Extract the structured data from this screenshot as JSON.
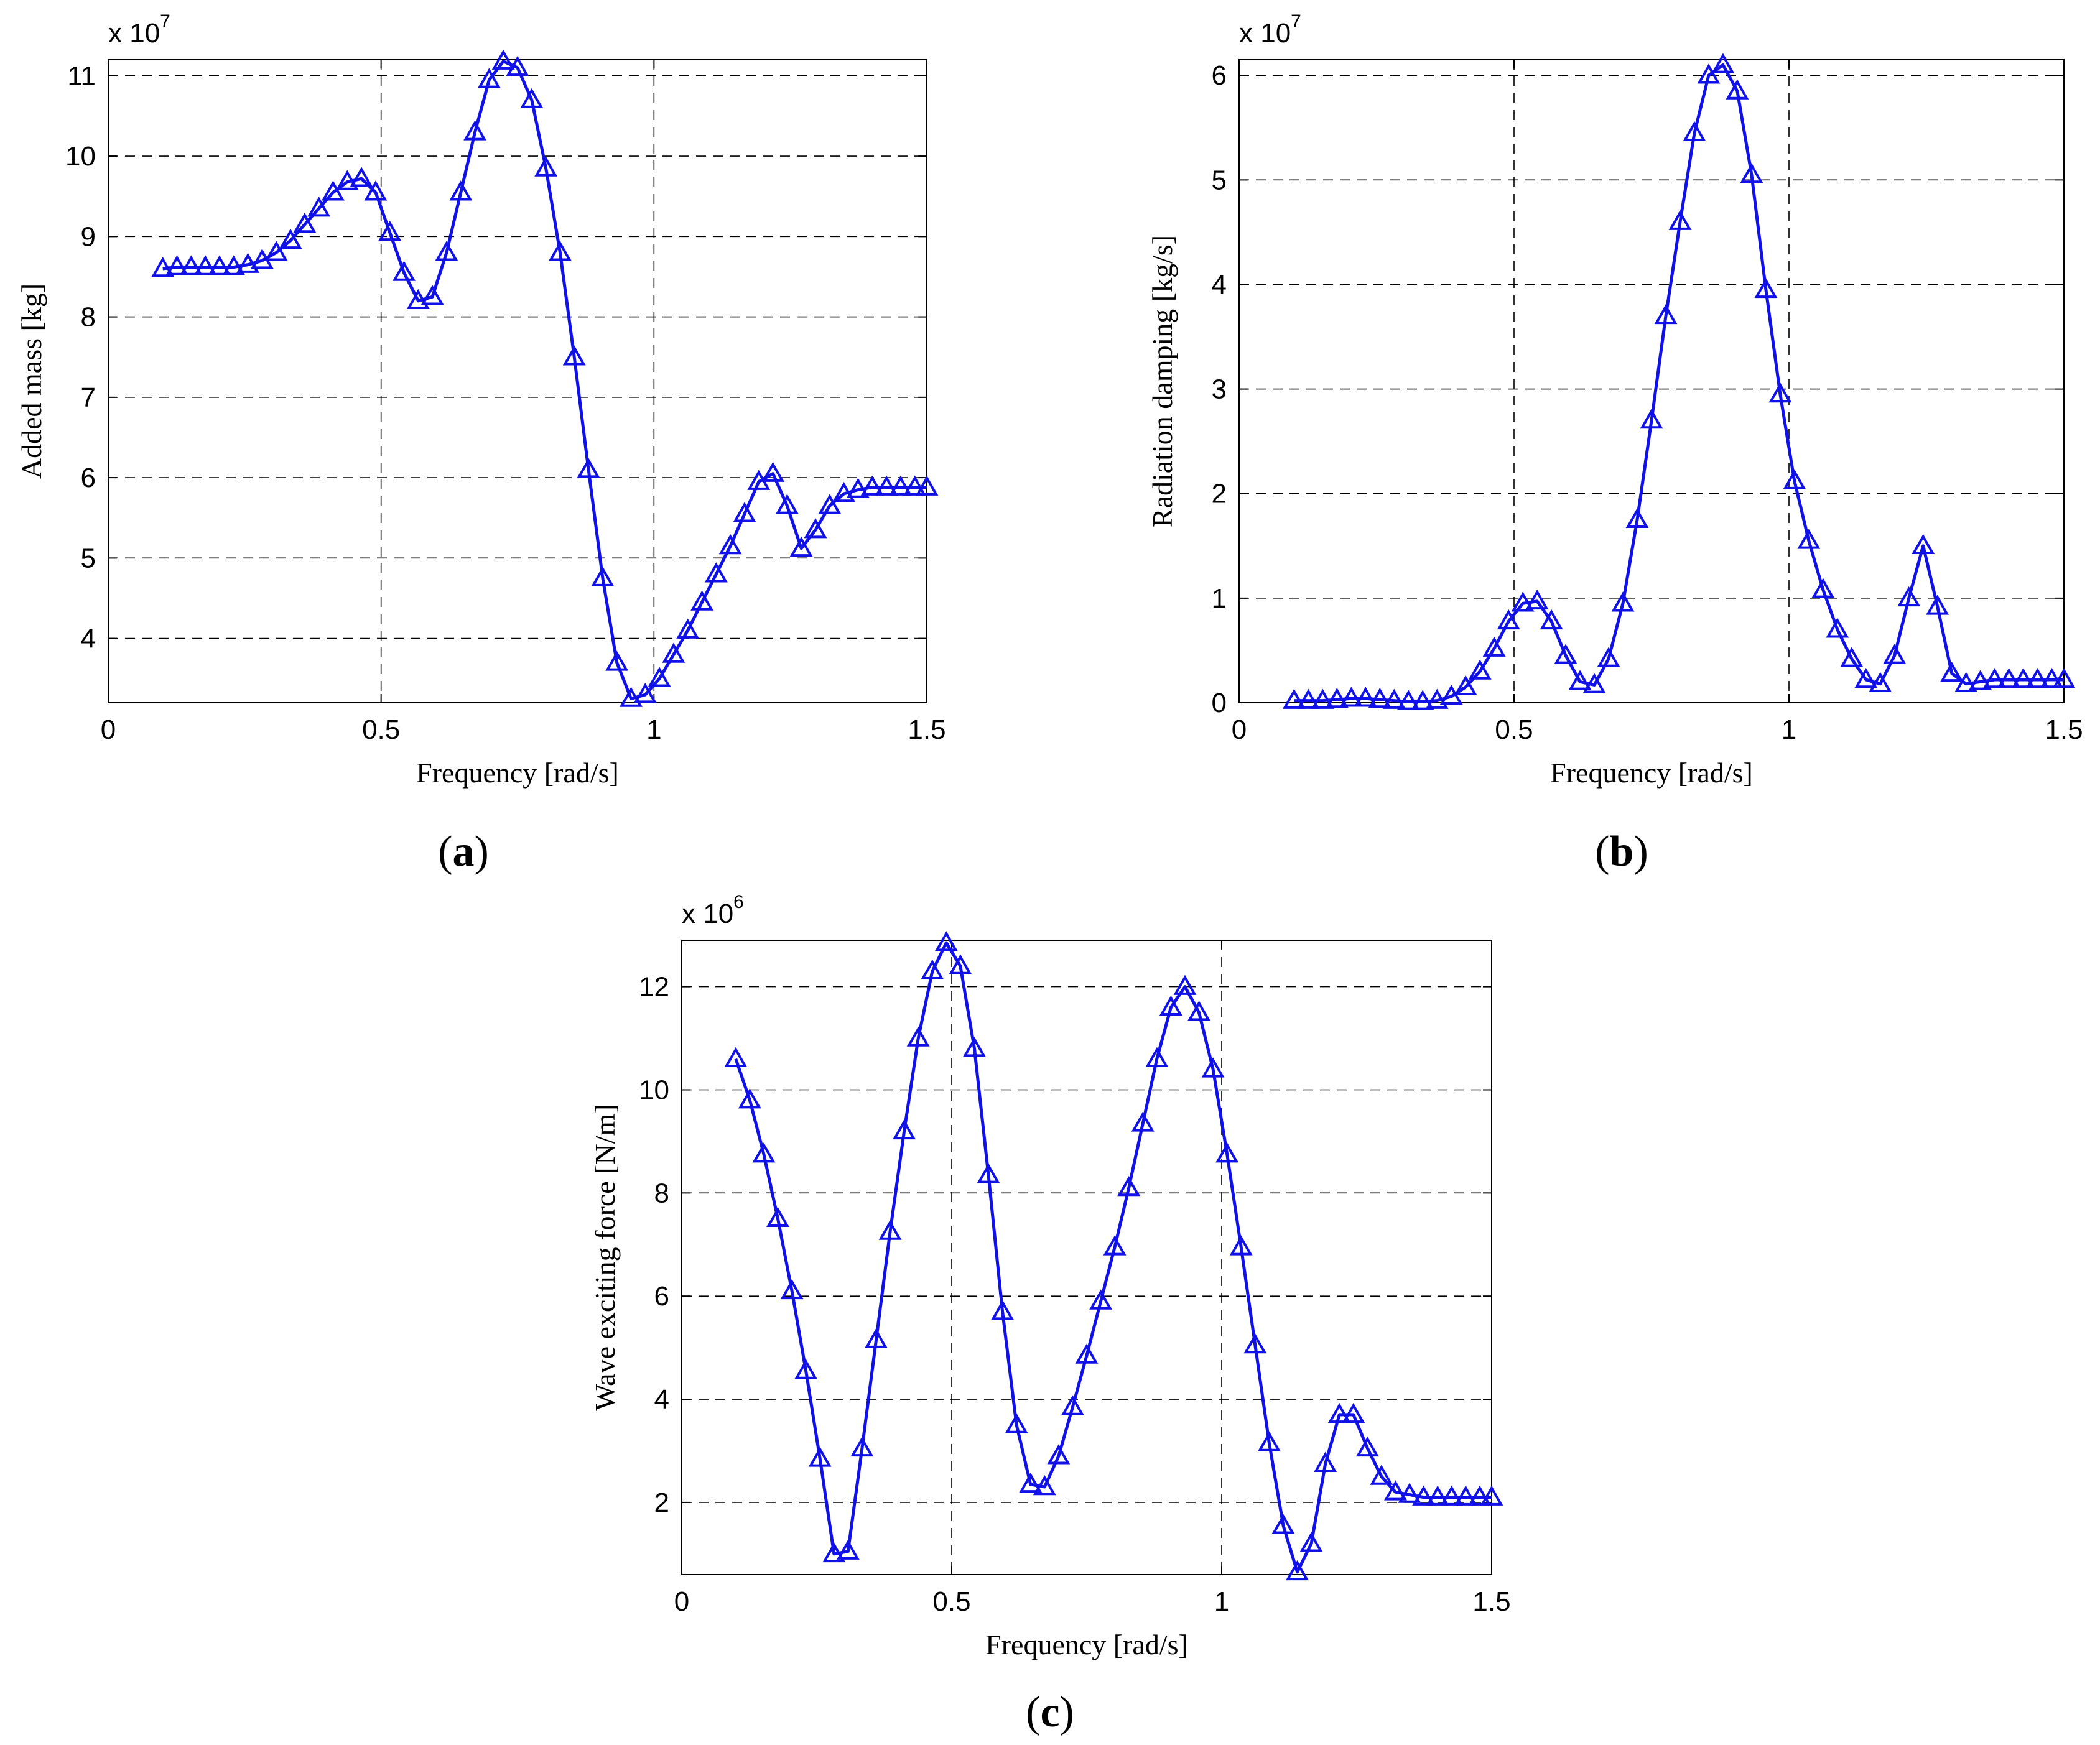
{
  "colors": {
    "series": "#1010e8",
    "axis": "#000000",
    "background": "#ffffff"
  },
  "chart_data": [
    {
      "type": "line",
      "panel_label": "a",
      "title": "",
      "xlabel": "Frequency [rad/s]",
      "ylabel": "Added mass [kg]",
      "exponent_base": "x 10",
      "exponent_power": "7",
      "xlim": [
        0,
        1.5
      ],
      "ylim": [
        3.2,
        11.2
      ],
      "xticks": [
        0,
        0.5,
        1,
        1.5
      ],
      "xtick_labels": [
        "0",
        "0.5",
        "1",
        "1.5"
      ],
      "yticks": [
        4,
        5,
        6,
        7,
        8,
        9,
        10,
        11
      ],
      "ytick_labels": [
        "4",
        "5",
        "6",
        "7",
        "8",
        "9",
        "10",
        "11"
      ],
      "grid": true,
      "marker": "triangle",
      "x": [
        0.1,
        0.126,
        0.152,
        0.178,
        0.204,
        0.23,
        0.256,
        0.282,
        0.308,
        0.334,
        0.36,
        0.386,
        0.412,
        0.438,
        0.464,
        0.49,
        0.516,
        0.542,
        0.568,
        0.594,
        0.62,
        0.646,
        0.672,
        0.698,
        0.724,
        0.75,
        0.776,
        0.802,
        0.828,
        0.854,
        0.88,
        0.906,
        0.932,
        0.958,
        0.984,
        1.01,
        1.036,
        1.062,
        1.088,
        1.114,
        1.14,
        1.166,
        1.192,
        1.218,
        1.244,
        1.27,
        1.296,
        1.322,
        1.348,
        1.374,
        1.4,
        1.426,
        1.452,
        1.478,
        1.5
      ],
      "y": [
        8.6,
        8.62,
        8.62,
        8.62,
        8.62,
        8.62,
        8.65,
        8.7,
        8.8,
        8.95,
        9.15,
        9.35,
        9.55,
        9.68,
        9.72,
        9.55,
        9.05,
        8.55,
        8.2,
        8.25,
        8.8,
        9.55,
        10.3,
        10.95,
        11.18,
        11.1,
        10.7,
        9.85,
        8.8,
        7.5,
        6.1,
        4.75,
        3.7,
        3.25,
        3.3,
        3.5,
        3.8,
        4.1,
        4.45,
        4.8,
        5.15,
        5.55,
        5.95,
        6.05,
        5.65,
        5.12,
        5.35,
        5.65,
        5.8,
        5.85,
        5.88,
        5.88,
        5.88,
        5.88,
        5.88
      ]
    },
    {
      "type": "line",
      "panel_label": "b",
      "title": "",
      "xlabel": "Frequency [rad/s]",
      "ylabel": "Radiation damping [kg/s]",
      "exponent_base": "x 10",
      "exponent_power": "7",
      "xlim": [
        0,
        1.5
      ],
      "ylim": [
        0,
        6.15
      ],
      "xticks": [
        0,
        0.5,
        1,
        1.5
      ],
      "xtick_labels": [
        "0",
        "0.5",
        "1",
        "1.5"
      ],
      "yticks": [
        0,
        1,
        2,
        3,
        4,
        5,
        6
      ],
      "ytick_labels": [
        "0",
        "1",
        "2",
        "3",
        "4",
        "5",
        "6"
      ],
      "grid": true,
      "marker": "triangle",
      "x": [
        0.1,
        0.126,
        0.152,
        0.178,
        0.204,
        0.23,
        0.256,
        0.282,
        0.308,
        0.334,
        0.36,
        0.386,
        0.412,
        0.438,
        0.464,
        0.49,
        0.516,
        0.542,
        0.568,
        0.594,
        0.62,
        0.646,
        0.672,
        0.698,
        0.724,
        0.75,
        0.776,
        0.802,
        0.828,
        0.854,
        0.88,
        0.906,
        0.932,
        0.958,
        0.984,
        1.01,
        1.036,
        1.062,
        1.088,
        1.114,
        1.14,
        1.166,
        1.192,
        1.218,
        1.244,
        1.27,
        1.296,
        1.322,
        1.348,
        1.374,
        1.4,
        1.426,
        1.452,
        1.478,
        1.5
      ],
      "y": [
        0.02,
        0.02,
        0.02,
        0.03,
        0.04,
        0.04,
        0.03,
        0.02,
        0.01,
        0.01,
        0.02,
        0.06,
        0.15,
        0.3,
        0.52,
        0.78,
        0.95,
        0.97,
        0.78,
        0.45,
        0.2,
        0.17,
        0.42,
        0.95,
        1.75,
        2.7,
        3.7,
        4.6,
        5.45,
        6.0,
        6.1,
        5.85,
        5.05,
        3.95,
        2.95,
        2.12,
        1.55,
        1.08,
        0.7,
        0.42,
        0.22,
        0.18,
        0.45,
        1.0,
        1.5,
        0.92,
        0.28,
        0.18,
        0.2,
        0.22,
        0.22,
        0.22,
        0.22,
        0.22,
        0.22
      ]
    },
    {
      "type": "line",
      "panel_label": "c",
      "title": "",
      "xlabel": "Frequency [rad/s]",
      "ylabel": "Wave exciting force [N/m]",
      "exponent_base": "x 10",
      "exponent_power": "6",
      "xlim": [
        0,
        1.5
      ],
      "ylim": [
        0.6,
        12.9
      ],
      "xticks": [
        0,
        0.5,
        1,
        1.5
      ],
      "xtick_labels": [
        "0",
        "0.5",
        "1",
        "1.5"
      ],
      "yticks": [
        2,
        4,
        6,
        8,
        10,
        12
      ],
      "ytick_labels": [
        "2",
        "4",
        "6",
        "8",
        "10",
        "12"
      ],
      "grid": true,
      "marker": "triangle",
      "x": [
        0.1,
        0.126,
        0.152,
        0.178,
        0.204,
        0.23,
        0.256,
        0.282,
        0.308,
        0.334,
        0.36,
        0.386,
        0.412,
        0.438,
        0.464,
        0.49,
        0.516,
        0.542,
        0.568,
        0.594,
        0.62,
        0.646,
        0.672,
        0.698,
        0.724,
        0.75,
        0.776,
        0.802,
        0.828,
        0.854,
        0.88,
        0.906,
        0.932,
        0.958,
        0.984,
        1.01,
        1.036,
        1.062,
        1.088,
        1.114,
        1.14,
        1.166,
        1.192,
        1.218,
        1.244,
        1.27,
        1.296,
        1.322,
        1.348,
        1.374,
        1.4,
        1.426,
        1.452,
        1.478,
        1.5
      ],
      "y": [
        10.6,
        9.8,
        8.75,
        7.5,
        6.1,
        4.55,
        2.85,
        1.0,
        1.05,
        3.05,
        5.15,
        7.25,
        9.2,
        11.0,
        12.3,
        12.85,
        12.4,
        10.8,
        8.35,
        5.7,
        3.5,
        2.35,
        2.3,
        2.9,
        3.85,
        4.85,
        5.9,
        6.95,
        8.1,
        9.35,
        10.6,
        11.6,
        12.0,
        11.5,
        10.4,
        8.75,
        6.95,
        5.05,
        3.15,
        1.55,
        0.65,
        1.2,
        2.75,
        3.7,
        3.7,
        3.05,
        2.5,
        2.2,
        2.15,
        2.1,
        2.1,
        2.1,
        2.1,
        2.1,
        2.1
      ]
    }
  ]
}
